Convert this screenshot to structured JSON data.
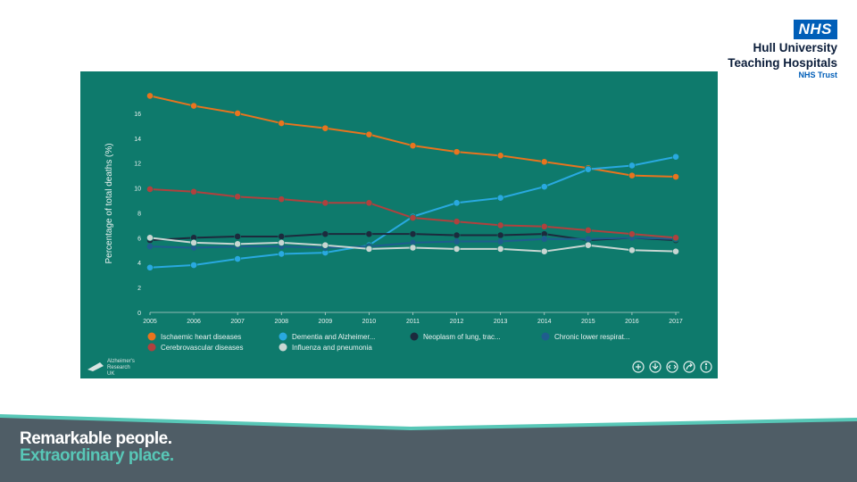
{
  "branding": {
    "badge": "NHS",
    "org_line1": "Hull University",
    "org_line2": "Teaching Hospitals",
    "trust": "NHS Trust",
    "tagline_1": "Remarkable people.",
    "tagline_2": "Extraordinary place."
  },
  "chart_source_logo": {
    "line1": "Alzheimer's",
    "line2": "Research",
    "line3": "UK"
  },
  "toolbar_icons": [
    "zoom-icon",
    "download-icon",
    "embed-icon",
    "share-icon",
    "info-icon"
  ],
  "colors": {
    "panel_bg": "#0e7a6c",
    "footer_dark": "#4f5d66",
    "footer_teal": "#58c7b7"
  },
  "chart_data": {
    "type": "line",
    "title": "",
    "xlabel": "",
    "ylabel": "Percentage of total deaths (%)",
    "ylim": [
      0,
      17.5
    ],
    "yticks": [
      0,
      2,
      4,
      6,
      8,
      10,
      12,
      14,
      16
    ],
    "x": [
      "2005",
      "2006",
      "2007",
      "2008",
      "2009",
      "2010",
      "2011",
      "2012",
      "2013",
      "2014",
      "2015",
      "2016",
      "2017"
    ],
    "grid": false,
    "legend_position": "bottom",
    "series": [
      {
        "name": "Ischaemic heart diseases",
        "color": "#e8741e",
        "values": [
          17.4,
          16.6,
          16.0,
          15.2,
          14.8,
          14.3,
          13.4,
          12.9,
          12.6,
          12.1,
          11.6,
          11.0,
          10.9
        ]
      },
      {
        "name": "Dementia and Alzheimer...",
        "color": "#29a9e0",
        "values": [
          3.6,
          3.8,
          4.3,
          4.7,
          4.8,
          5.4,
          7.7,
          8.8,
          9.2,
          10.1,
          11.5,
          11.8,
          12.5
        ]
      },
      {
        "name": "Neoplasm of lung, trac...",
        "color": "#1c2a3d",
        "values": [
          5.8,
          6.0,
          6.1,
          6.1,
          6.3,
          6.3,
          6.3,
          6.2,
          6.2,
          6.3,
          5.8,
          6.0,
          5.8
        ]
      },
      {
        "name": "Chronic lower respirat...",
        "color": "#1f5d8e",
        "values": [
          5.3,
          5.2,
          5.3,
          5.3,
          5.2,
          5.3,
          5.6,
          5.7,
          5.7,
          5.9,
          5.9,
          6.0,
          5.9
        ]
      },
      {
        "name": "Cerebrovascular diseases",
        "color": "#b0413e",
        "values": [
          9.9,
          9.7,
          9.3,
          9.1,
          8.8,
          8.8,
          7.6,
          7.3,
          7.0,
          6.9,
          6.6,
          6.3,
          6.0
        ]
      },
      {
        "name": "Influenza and pneumonia",
        "color": "#c8d6d2",
        "values": [
          6.0,
          5.6,
          5.5,
          5.6,
          5.4,
          5.1,
          5.2,
          5.1,
          5.1,
          4.9,
          5.4,
          5.0,
          4.9
        ]
      }
    ]
  }
}
